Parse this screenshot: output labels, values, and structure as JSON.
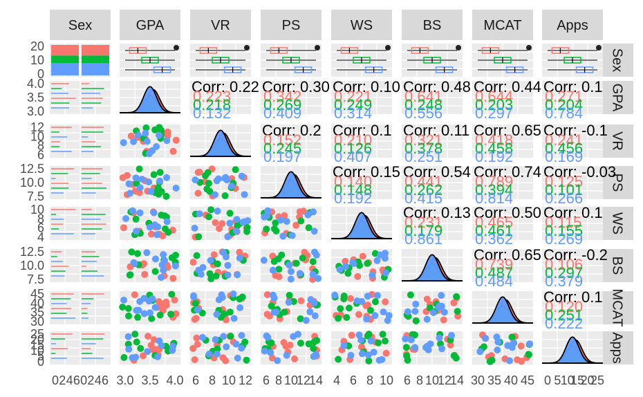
{
  "chart_data": {
    "type": "scatter-matrix",
    "title": "",
    "variables": [
      "Sex",
      "GPA",
      "VR",
      "PS",
      "WS",
      "BS",
      "MCAT",
      "Apps"
    ],
    "row_strip_labels": [
      "Sex",
      "GPA",
      "VR",
      "PS",
      "WS",
      "BS",
      "MCAT",
      "Apps"
    ],
    "groups": [
      {
        "name": "",
        "color": "#F8766D"
      },
      {
        "name": "",
        "color": "#00BA38"
      },
      {
        "name": "",
        "color": "#619CFF"
      }
    ],
    "x_ticks": [
      [
        "0",
        "2",
        "4",
        "6",
        "0",
        "2",
        "4",
        "6"
      ],
      [
        "3.0",
        "3.5",
        "4.0"
      ],
      [
        "6",
        "8",
        "10",
        "12"
      ],
      [
        "6",
        "8",
        "10",
        "12",
        "14"
      ],
      [
        "4",
        "6",
        "8",
        "10"
      ],
      [
        "6",
        "8",
        "10",
        "12",
        "14"
      ],
      [
        "30",
        "35",
        "40",
        "45"
      ],
      [
        "0",
        "5",
        "10",
        "15",
        "20",
        "25"
      ]
    ],
    "y_ticks": [
      [
        "0",
        "10",
        "20"
      ],
      [
        "3.0",
        "3.5",
        "4.0"
      ],
      [
        "6",
        "8",
        "10",
        "12"
      ],
      [
        "7.5",
        "10.0",
        "12.5"
      ],
      [
        "4",
        "6",
        "8",
        "10"
      ],
      [
        "7.5",
        "10.0",
        "12.5"
      ],
      [
        "30",
        "35",
        "40",
        "45"
      ],
      [
        "0",
        "5",
        "10",
        "15",
        "20",
        "25"
      ]
    ],
    "correlations": [
      {
        "row": 1,
        "col": 2,
        "label": "Corr: 0.22",
        "groups": [
          "0.223",
          "0.218",
          "0.132"
        ]
      },
      {
        "row": 1,
        "col": 3,
        "label": "Corr: 0.30",
        "groups": [
          "0.342",
          "0.269",
          "0.409"
        ]
      },
      {
        "row": 1,
        "col": 4,
        "label": "Corr: 0.10",
        "groups": [
          "0.221",
          "0.249",
          "0.314"
        ]
      },
      {
        "row": 1,
        "col": 5,
        "label": "Corr: 0.48",
        "groups": [
          "0.641",
          "0.248",
          "0.556"
        ]
      },
      {
        "row": 1,
        "col": 6,
        "label": "Corr: 0.44",
        "groups": [
          "0.644",
          "0.203",
          "0.297"
        ]
      },
      {
        "row": 1,
        "col": 7,
        "label": "Corr: 0.1",
        "groups": [
          "0.271",
          "0.204",
          "0.784"
        ]
      },
      {
        "row": 2,
        "col": 3,
        "label": "Corr: 0.2",
        "groups": [
          "0.152",
          "0.245",
          "0.197"
        ]
      },
      {
        "row": 2,
        "col": 4,
        "label": "Corr: 0.1",
        "groups": [
          "0.210",
          "0.126",
          "0.407"
        ]
      },
      {
        "row": 2,
        "col": 5,
        "label": "Corr: 0.11",
        "groups": [
          "0.321",
          "0.378",
          "0.251"
        ]
      },
      {
        "row": 2,
        "col": 6,
        "label": "Corr: 0.65",
        "groups": [
          "0.418",
          "0.458",
          "0.192"
        ]
      },
      {
        "row": 2,
        "col": 7,
        "label": "Corr: -0.1",
        "groups": [
          "0.241",
          "0.456",
          "0.169"
        ]
      },
      {
        "row": 3,
        "col": 4,
        "label": "Corr: 0.15",
        "groups": [
          "0.140",
          "0.148",
          "0.192"
        ]
      },
      {
        "row": 3,
        "col": 5,
        "label": "Corr: 0.54",
        "groups": [
          "0.441",
          "0.262",
          "0.415"
        ]
      },
      {
        "row": 3,
        "col": 6,
        "label": "Corr: 0.74",
        "groups": [
          "0.789",
          "0.394",
          "0.814"
        ]
      },
      {
        "row": 3,
        "col": 7,
        "label": "Corr: -0.03",
        "groups": [
          "0.125",
          "0.101",
          "0.266"
        ]
      },
      {
        "row": 4,
        "col": 5,
        "label": "Corr: 0.13",
        "groups": [
          "0.231",
          "0.179",
          "0.861"
        ]
      },
      {
        "row": 4,
        "col": 6,
        "label": "Corr: 0.50",
        "groups": [
          "0.465",
          "0.461",
          "0.362"
        ]
      },
      {
        "row": 4,
        "col": 7,
        "label": "Corr: 0.1",
        "groups": [
          "0.115",
          "0.155",
          "0.269"
        ]
      },
      {
        "row": 5,
        "col": 6,
        "label": "Corr: 0.65",
        "groups": [
          "0.739",
          "0.487",
          "0.484"
        ]
      },
      {
        "row": 5,
        "col": 7,
        "label": "Corr: -0.2",
        "groups": [
          "0.106",
          "0.297",
          "0.379"
        ]
      },
      {
        "row": 6,
        "col": 7,
        "label": "Corr: 0.1",
        "groups": [
          "0.120",
          "0.251",
          "0.222"
        ]
      }
    ]
  }
}
